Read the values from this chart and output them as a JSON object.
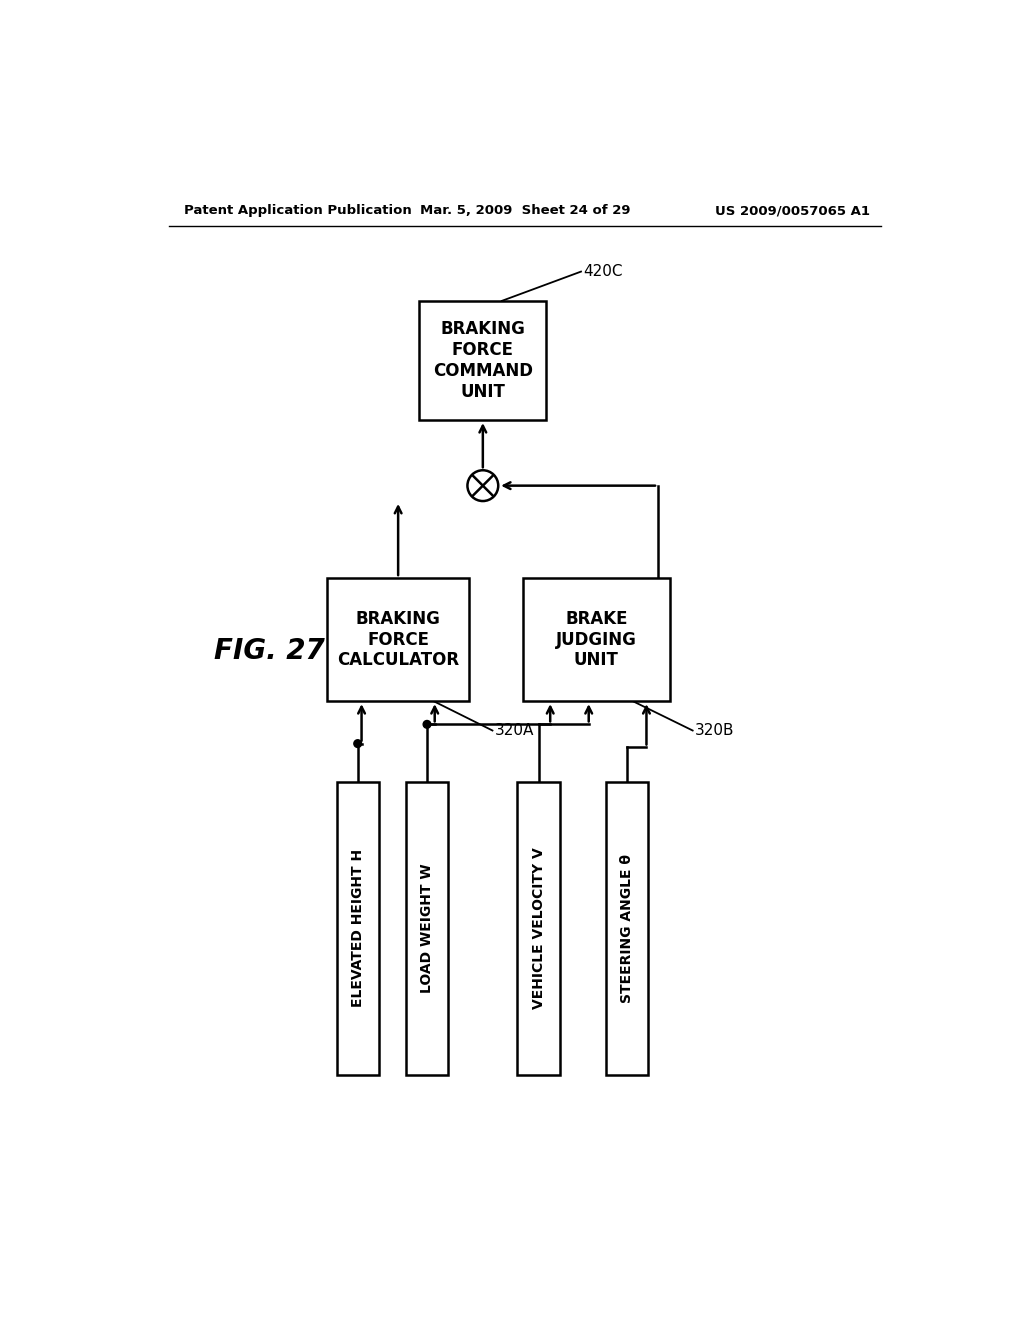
{
  "background_color": "#ffffff",
  "header_left": "Patent Application Publication",
  "header_mid": "Mar. 5, 2009  Sheet 24 of 29",
  "header_right": "US 2009/0057065 A1",
  "fig_label": "FIG. 27",
  "box_420c_label": "BRAKING\nFORCE\nCOMMAND\nUNIT",
  "box_420c_ref": "420C",
  "box_320a_label": "BRAKING\nFORCE\nCALCULATOR",
  "box_320a_ref": "320A",
  "box_320b_label": "BRAKE\nJUDGING\nUNIT",
  "box_320b_ref": "320B",
  "box_h_label": "ELEVATED HEIGHT H",
  "box_w_label": "LOAD WEIGHT W",
  "box_v_label": "VEHICLE VELOCITY V",
  "box_theta_label": "STEERING ANGLE θ",
  "line_color": "#000000",
  "text_color": "#000000"
}
